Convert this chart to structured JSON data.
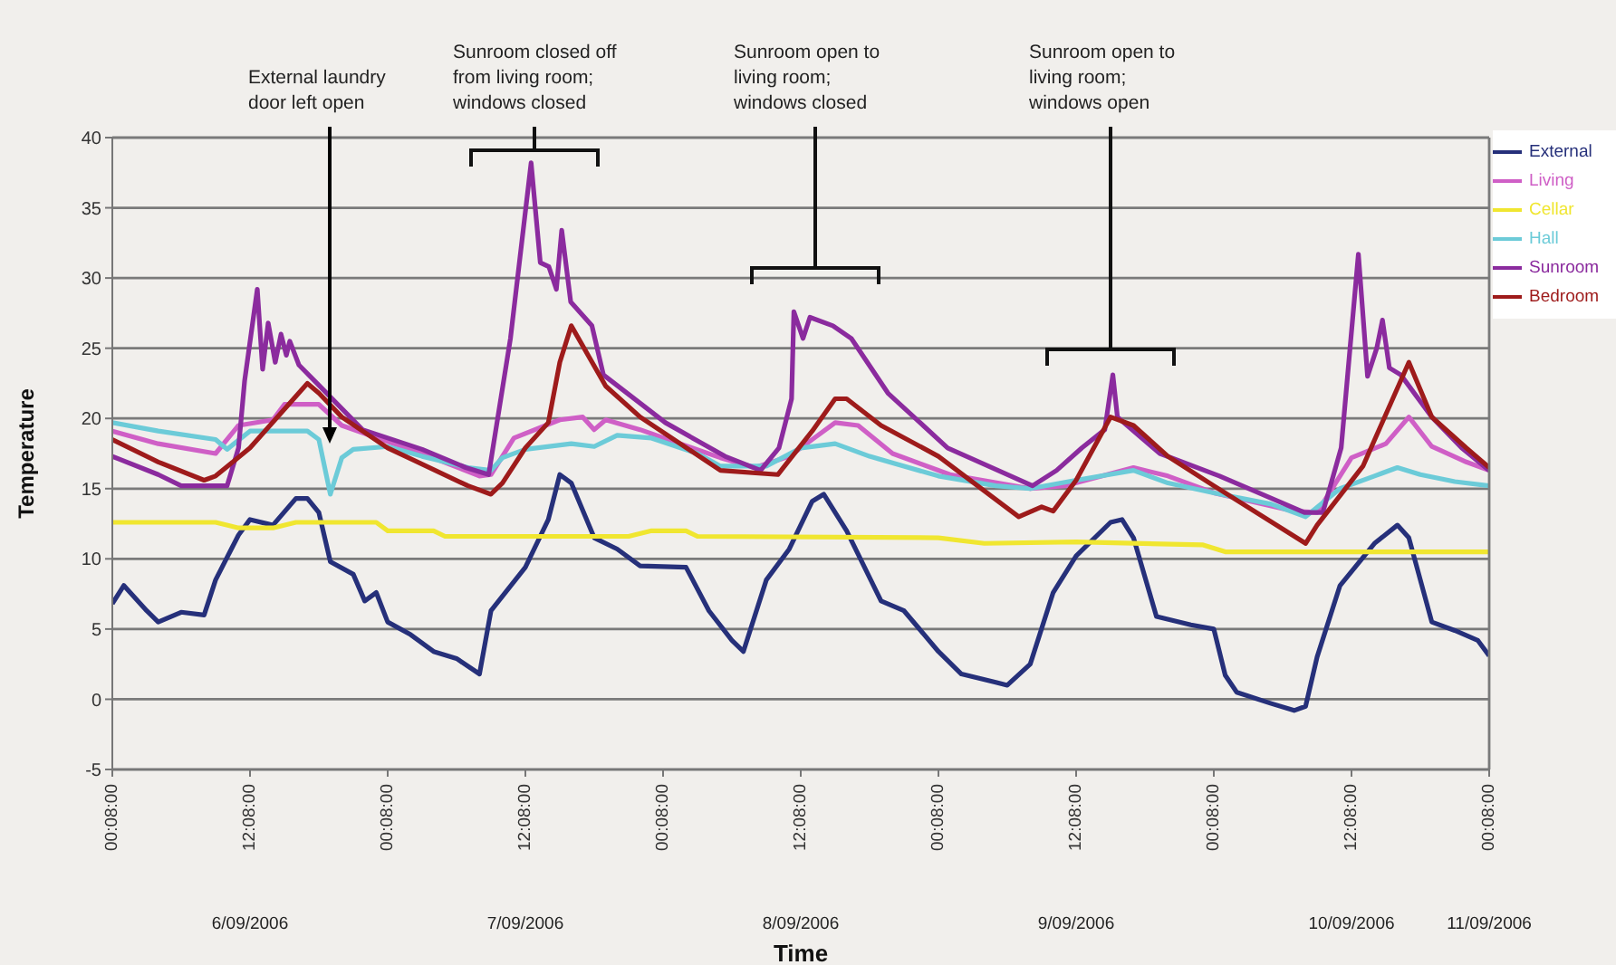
{
  "chart_data": {
    "type": "line",
    "xlabel": "Time",
    "ylabel": "Temperature",
    "xlim": [
      "2006-09-06T00:08",
      "2006-09-11T00:08"
    ],
    "xticks": [
      {
        "value": "2006-09-06T00:08",
        "label": "00:08:00"
      },
      {
        "value": "2006-09-06T12:08",
        "label": "12:08:00"
      },
      {
        "value": "2006-09-07T00:08",
        "label": "00:08:00"
      },
      {
        "value": "2006-09-07T12:08",
        "label": "12:08:00"
      },
      {
        "value": "2006-09-08T00:08",
        "label": "00:08:00"
      },
      {
        "value": "2006-09-08T12:08",
        "label": "12:08:00"
      },
      {
        "value": "2006-09-09T00:08",
        "label": "00:08:00"
      },
      {
        "value": "2006-09-09T12:08",
        "label": "12:08:00"
      },
      {
        "value": "2006-09-10T00:08",
        "label": "00:08:00"
      },
      {
        "value": "2006-09-10T12:08",
        "label": "12:08:00"
      },
      {
        "value": "2006-09-11T00:08",
        "label": "00:08:00"
      }
    ],
    "ylim": [
      -5,
      40
    ],
    "yticks": [
      -5,
      0,
      5,
      10,
      15,
      20,
      25,
      30,
      35,
      40
    ],
    "grid": "y",
    "legend": "top right",
    "annotations": [
      "External laundry\ndoor left open",
      "Sunroom closed off\nfrom living room;\nwindows closed",
      "Sunroom open to\nliving room;\nwindows closed",
      "Sunroom open to\nliving room;\nwindows open",
      "6/09/2006",
      "7/09/2006",
      "8/09/2006",
      "9/09/2006",
      "10/09/2006",
      "11/09/2006"
    ],
    "series": [
      {
        "name": "External",
        "color": "#26307a",
        "x": [
          "2006-09-06T00:08",
          "2006-09-06T01:08",
          "2006-09-06T03:08",
          "2006-09-06T04:08",
          "2006-09-06T06:08",
          "2006-09-06T08:08",
          "2006-09-06T09:08",
          "2006-09-06T11:08",
          "2006-09-06T12:08",
          "2006-09-06T14:08",
          "2006-09-06T16:08",
          "2006-09-06T17:08",
          "2006-09-06T18:08",
          "2006-09-06T19:08",
          "2006-09-06T21:08",
          "2006-09-06T22:08",
          "2006-09-06T23:08",
          "2006-09-07T00:08",
          "2006-09-07T02:08",
          "2006-09-07T04:08",
          "2006-09-07T06:08",
          "2006-09-07T08:08",
          "2006-09-07T09:08",
          "2006-09-07T12:08",
          "2006-09-07T14:08",
          "2006-09-07T15:08",
          "2006-09-07T16:08",
          "2006-09-07T18:08",
          "2006-09-07T20:08",
          "2006-09-07T22:08",
          "2006-09-08T02:08",
          "2006-09-08T04:08",
          "2006-09-08T06:08",
          "2006-09-08T07:08",
          "2006-09-08T09:08",
          "2006-09-08T11:08",
          "2006-09-08T13:08",
          "2006-09-08T14:08",
          "2006-09-08T16:08",
          "2006-09-08T19:08",
          "2006-09-08T21:08",
          "2006-09-09T00:08",
          "2006-09-09T02:08",
          "2006-09-09T05:08",
          "2006-09-09T06:08",
          "2006-09-09T08:08",
          "2006-09-09T10:08",
          "2006-09-09T12:08",
          "2006-09-09T15:08",
          "2006-09-09T16:08",
          "2006-09-09T17:08",
          "2006-09-09T19:08",
          "2006-09-09T22:08",
          "2006-09-10T00:08",
          "2006-09-10T01:08",
          "2006-09-10T02:08",
          "2006-09-10T05:08",
          "2006-09-10T07:08",
          "2006-09-10T08:08",
          "2006-09-10T09:08",
          "2006-09-10T11:08",
          "2006-09-10T14:08",
          "2006-09-10T16:08",
          "2006-09-10T17:08",
          "2006-09-10T19:08",
          "2006-09-10T21:08",
          "2006-09-10T23:08",
          "2006-09-11T00:08"
        ],
        "values": [
          6.8,
          8.1,
          6.3,
          5.5,
          6.2,
          6.0,
          8.5,
          11.7,
          12.8,
          12.4,
          14.3,
          14.3,
          13.3,
          9.8,
          8.9,
          7.0,
          7.6,
          5.5,
          4.6,
          3.4,
          2.9,
          1.8,
          6.3,
          9.4,
          12.8,
          16.0,
          15.4,
          11.5,
          10.7,
          9.5,
          9.4,
          6.3,
          4.2,
          3.4,
          8.5,
          10.7,
          14.1,
          14.6,
          12.0,
          7.0,
          6.3,
          3.4,
          1.8,
          1.2,
          1.0,
          2.5,
          7.6,
          10.2,
          12.6,
          12.8,
          11.5,
          5.9,
          5.3,
          5.0,
          1.7,
          0.5,
          -0.3,
          -0.8,
          -0.5,
          3.0,
          8.1,
          11.1,
          12.4,
          11.5,
          5.5,
          4.9,
          4.2,
          3.1
        ]
      },
      {
        "name": "Living",
        "color": "#cf5fc6",
        "x": [
          "2006-09-06T00:08",
          "2006-09-06T04:08",
          "2006-09-06T09:08",
          "2006-09-06T11:08",
          "2006-09-06T14:08",
          "2006-09-06T15:08",
          "2006-09-06T18:08",
          "2006-09-06T20:08",
          "2006-09-07T03:08",
          "2006-09-07T08:08",
          "2006-09-07T09:08",
          "2006-09-07T11:08",
          "2006-09-07T15:08",
          "2006-09-07T17:08",
          "2006-09-07T18:08",
          "2006-09-07T19:08",
          "2006-09-07T22:08",
          "2006-09-08T05:08",
          "2006-09-08T08:08",
          "2006-09-08T11:08",
          "2006-09-08T13:08",
          "2006-09-08T15:08",
          "2006-09-08T17:08",
          "2006-09-08T20:08",
          "2006-09-09T01:08",
          "2006-09-09T08:08",
          "2006-09-09T11:08",
          "2006-09-09T17:08",
          "2006-09-09T20:08",
          "2006-09-10T00:08",
          "2006-09-10T07:08",
          "2006-09-10T09:08",
          "2006-09-10T12:08",
          "2006-09-10T15:08",
          "2006-09-10T17:08",
          "2006-09-10T19:08",
          "2006-09-10T22:08",
          "2006-09-11T00:08"
        ],
        "values": [
          19.1,
          18.2,
          17.5,
          19.5,
          19.9,
          21.0,
          21.0,
          19.5,
          17.5,
          15.9,
          16.0,
          18.6,
          19.9,
          20.1,
          19.2,
          19.9,
          19.2,
          17.2,
          16.5,
          17.3,
          18.5,
          19.7,
          19.5,
          17.5,
          16.0,
          15.0,
          15.2,
          16.5,
          15.9,
          14.7,
          13.4,
          13.3,
          17.2,
          18.2,
          20.1,
          18.0,
          16.9,
          16.3
        ]
      },
      {
        "name": "Cellar",
        "color": "#f0e630",
        "x": [
          "2006-09-06T00:08",
          "2006-09-06T09:08",
          "2006-09-06T11:08",
          "2006-09-06T14:08",
          "2006-09-06T16:08",
          "2006-09-06T23:08",
          "2006-09-07T00:08",
          "2006-09-07T04:08",
          "2006-09-07T05:08",
          "2006-09-07T21:08",
          "2006-09-07T23:08",
          "2006-09-08T02:08",
          "2006-09-08T03:08",
          "2006-09-09T00:08",
          "2006-09-09T04:08",
          "2006-09-09T12:08",
          "2006-09-09T23:08",
          "2006-09-10T01:08",
          "2006-09-11T00:08"
        ],
        "values": [
          12.6,
          12.6,
          12.2,
          12.2,
          12.6,
          12.6,
          12.0,
          12.0,
          11.6,
          11.6,
          12.0,
          12.0,
          11.6,
          11.5,
          11.1,
          11.2,
          11.0,
          10.5,
          10.5
        ]
      },
      {
        "name": "Hall",
        "color": "#6ccbd8",
        "x": [
          "2006-09-06T00:08",
          "2006-09-06T04:08",
          "2006-09-06T09:08",
          "2006-09-06T10:08",
          "2006-09-06T12:08",
          "2006-09-06T17:08",
          "2006-09-06T18:08",
          "2006-09-06T19:08",
          "2006-09-06T20:08",
          "2006-09-06T21:08",
          "2006-09-07T00:08",
          "2006-09-07T03:08",
          "2006-09-07T07:08",
          "2006-09-07T09:08",
          "2006-09-07T10:08",
          "2006-09-07T12:08",
          "2006-09-07T16:08",
          "2006-09-07T18:08",
          "2006-09-07T20:08",
          "2006-09-07T23:08",
          "2006-09-08T03:08",
          "2006-09-08T05:08",
          "2006-09-08T09:08",
          "2006-09-08T12:08",
          "2006-09-08T15:08",
          "2006-09-08T18:08",
          "2006-09-09T00:08",
          "2006-09-09T05:08",
          "2006-09-09T08:08",
          "2006-09-09T12:08",
          "2006-09-09T17:08",
          "2006-09-09T20:08",
          "2006-09-10T00:08",
          "2006-09-10T05:08",
          "2006-09-10T08:08",
          "2006-09-10T11:08",
          "2006-09-10T14:08",
          "2006-09-10T16:08",
          "2006-09-10T18:08",
          "2006-09-10T21:08",
          "2006-09-11T00:08"
        ],
        "values": [
          19.7,
          19.1,
          18.5,
          17.8,
          19.1,
          19.1,
          18.5,
          14.6,
          17.2,
          17.8,
          18.0,
          17.3,
          16.5,
          16.3,
          17.2,
          17.8,
          18.2,
          18.0,
          18.8,
          18.6,
          17.5,
          16.6,
          16.6,
          17.9,
          18.2,
          17.3,
          15.9,
          15.2,
          15.0,
          15.6,
          16.3,
          15.4,
          14.7,
          13.9,
          13.0,
          15.0,
          15.9,
          16.5,
          16.0,
          15.5,
          15.2
        ]
      },
      {
        "name": "Sunroom",
        "color": "#8b2b9e",
        "x": [
          "2006-09-06T00:08",
          "2006-09-06T04:08",
          "2006-09-06T06:08",
          "2006-09-06T10:08",
          "2006-09-06T11:08",
          "2006-09-06T11:40",
          "2006-09-06T12:46",
          "2006-09-06T13:14",
          "2006-09-06T13:43",
          "2006-09-06T14:20",
          "2006-09-06T14:50",
          "2006-09-06T15:18",
          "2006-09-06T15:36",
          "2006-09-06T16:24",
          "2006-09-06T17:58",
          "2006-09-06T21:56",
          "2006-09-07T03:08",
          "2006-09-07T06:56",
          "2006-09-07T08:56",
          "2006-09-07T10:50",
          "2006-09-07T12:38",
          "2006-09-07T13:26",
          "2006-09-07T14:11",
          "2006-09-07T14:50",
          "2006-09-07T15:18",
          "2006-09-07T16:05",
          "2006-09-07T17:56",
          "2006-09-07T18:56",
          "2006-09-08T00:20",
          "2006-09-08T05:32",
          "2006-09-08T08:38",
          "2006-09-08T10:14",
          "2006-09-08T11:20",
          "2006-09-08T11:32",
          "2006-09-08T12:20",
          "2006-09-08T12:56",
          "2006-09-08T14:56",
          "2006-09-08T16:32",
          "2006-09-08T19:44",
          "2006-09-09T00:56",
          "2006-09-09T08:20",
          "2006-09-09T10:26",
          "2006-09-09T12:38",
          "2006-09-09T14:38",
          "2006-09-09T15:20",
          "2006-09-09T15:44",
          "2006-09-09T19:26",
          "2006-09-10T00:38",
          "2006-09-10T08:02",
          "2006-09-10T09:38",
          "2006-09-10T11:14",
          "2006-09-10T12:44",
          "2006-09-10T13:32",
          "2006-09-10T14:20",
          "2006-09-10T14:50",
          "2006-09-10T15:26",
          "2006-09-10T16:26",
          "2006-09-10T19:08",
          "2006-09-10T21:44",
          "2006-09-11T00:08"
        ],
        "values": [
          17.3,
          16.0,
          15.2,
          15.2,
          17.9,
          22.7,
          29.2,
          23.5,
          26.8,
          24.0,
          26.0,
          24.5,
          25.5,
          23.8,
          22.5,
          19.2,
          17.8,
          16.5,
          16.0,
          25.7,
          38.2,
          31.1,
          30.8,
          29.2,
          33.4,
          28.3,
          26.6,
          23.1,
          19.7,
          17.3,
          16.3,
          17.9,
          21.4,
          27.6,
          25.7,
          27.2,
          26.6,
          25.7,
          21.8,
          17.9,
          15.2,
          16.3,
          17.9,
          19.2,
          23.1,
          20.1,
          17.5,
          15.9,
          13.3,
          13.3,
          17.9,
          31.7,
          23.0,
          25.0,
          27.0,
          23.6,
          23.1,
          20.1,
          17.9,
          16.3
        ]
      },
      {
        "name": "Bedroom",
        "color": "#9e1b1b",
        "x": [
          "2006-09-06T00:08",
          "2006-09-06T04:08",
          "2006-09-06T08:08",
          "2006-09-06T09:08",
          "2006-09-06T12:08",
          "2006-09-06T17:08",
          "2006-09-06T18:08",
          "2006-09-06T20:08",
          "2006-09-07T00:08",
          "2006-09-07T07:08",
          "2006-09-07T09:08",
          "2006-09-07T10:08",
          "2006-09-07T12:08",
          "2006-09-07T14:08",
          "2006-09-07T15:08",
          "2006-09-07T16:08",
          "2006-09-07T19:08",
          "2006-09-07T22:08",
          "2006-09-08T05:08",
          "2006-09-08T10:08",
          "2006-09-08T13:08",
          "2006-09-08T15:08",
          "2006-09-08T16:08",
          "2006-09-08T19:08",
          "2006-09-09T00:08",
          "2006-09-09T07:08",
          "2006-09-09T09:08",
          "2006-09-09T10:08",
          "2006-09-09T12:08",
          "2006-09-09T15:08",
          "2006-09-09T17:08",
          "2006-09-09T20:08",
          "2006-09-10T00:08",
          "2006-09-10T08:08",
          "2006-09-10T09:08",
          "2006-09-10T13:08",
          "2006-09-10T17:08",
          "2006-09-10T19:08",
          "2006-09-10T22:08",
          "2006-09-11T00:08"
        ],
        "values": [
          18.5,
          16.9,
          15.6,
          15.9,
          17.9,
          22.5,
          21.8,
          20.1,
          17.9,
          15.2,
          14.6,
          15.4,
          17.9,
          19.7,
          24.0,
          26.6,
          22.3,
          20.1,
          16.3,
          16.0,
          19.1,
          21.4,
          21.4,
          19.5,
          17.3,
          13.0,
          13.7,
          13.4,
          15.6,
          20.1,
          19.5,
          17.3,
          15.2,
          11.1,
          12.4,
          16.6,
          24.0,
          20.1,
          17.9,
          16.5
        ]
      }
    ]
  }
}
